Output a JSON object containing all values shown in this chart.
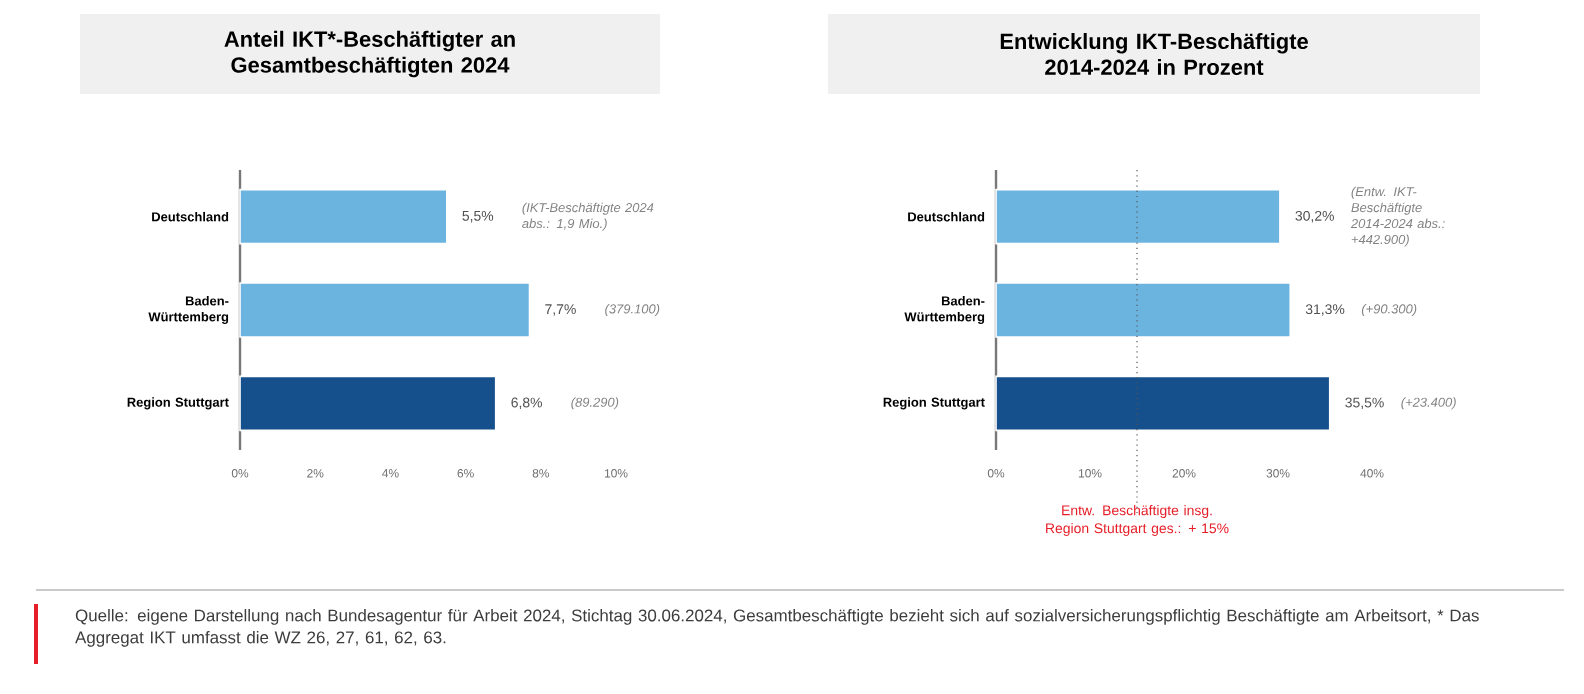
{
  "chart_data": [
    {
      "type": "bar",
      "orientation": "horizontal",
      "title": "Anteil IKT*-Beschäftigter an Gesamtbeschäftigten 2024",
      "categories": [
        "Deutschland",
        "Baden-Württemberg",
        "Region Stuttgart"
      ],
      "values": [
        5.5,
        7.7,
        6.8
      ],
      "colors": [
        "#6cb4e0",
        "#6cb4e0",
        "#154f8c"
      ],
      "value_labels": [
        "5,5%",
        "7,7%",
        "6,8%"
      ],
      "xlim": [
        0,
        10
      ],
      "xticks": [
        {
          "value": 0,
          "label": "0%"
        },
        {
          "value": 2,
          "label": "2%"
        },
        {
          "value": 4,
          "label": "4%"
        },
        {
          "value": 6,
          "label": "6%"
        },
        {
          "value": 8,
          "label": "8%"
        },
        {
          "value": 10,
          "label": "10%"
        }
      ],
      "annotations": [
        "(IKT-Beschäftigte 2024 abs.: 1,9 Mio.)",
        "(379.100)",
        "(89.290)"
      ]
    },
    {
      "type": "bar",
      "orientation": "horizontal",
      "title": "Entwicklung IKT-Beschäftigte 2014-2024 in Prozent",
      "categories": [
        "Deutschland",
        "Baden-Württemberg",
        "Region Stuttgart"
      ],
      "values": [
        30.2,
        31.3,
        35.5
      ],
      "colors": [
        "#6cb4e0",
        "#6cb4e0",
        "#154f8c"
      ],
      "value_labels": [
        "30,2%",
        "31,3%",
        "35,5%"
      ],
      "xlim": [
        0,
        40
      ],
      "xticks": [
        {
          "value": 0,
          "label": "0%"
        },
        {
          "value": 10,
          "label": "10%"
        },
        {
          "value": 20,
          "label": "20%"
        },
        {
          "value": 30,
          "label": "30%"
        },
        {
          "value": 40,
          "label": "40%"
        }
      ],
      "ref_lines": [
        {
          "axis": "x",
          "value": 15,
          "label": "Entw. Beschäftigte insg. Region Stuttgart ges.: + 15%",
          "color": "#555555",
          "line_style": "dotted"
        }
      ],
      "annotations": [
        "(Entw. IKT-Beschäftigte 2014-2024 abs.: +442.900)",
        "(+90.300)",
        "(+23.400)",
        "Quelle: eigene Darstellung nach Bundesagentur für Arbeit 2024, Stichtag 30.06.2024, Gesamtbeschäftigte bezieht sich auf sozialversicherungspflichtig Beschäftigte am Arbeitsort, * Das Aggregat IKT umfasst die WZ 26, 27, 61, 62, 63."
      ]
    }
  ]
}
